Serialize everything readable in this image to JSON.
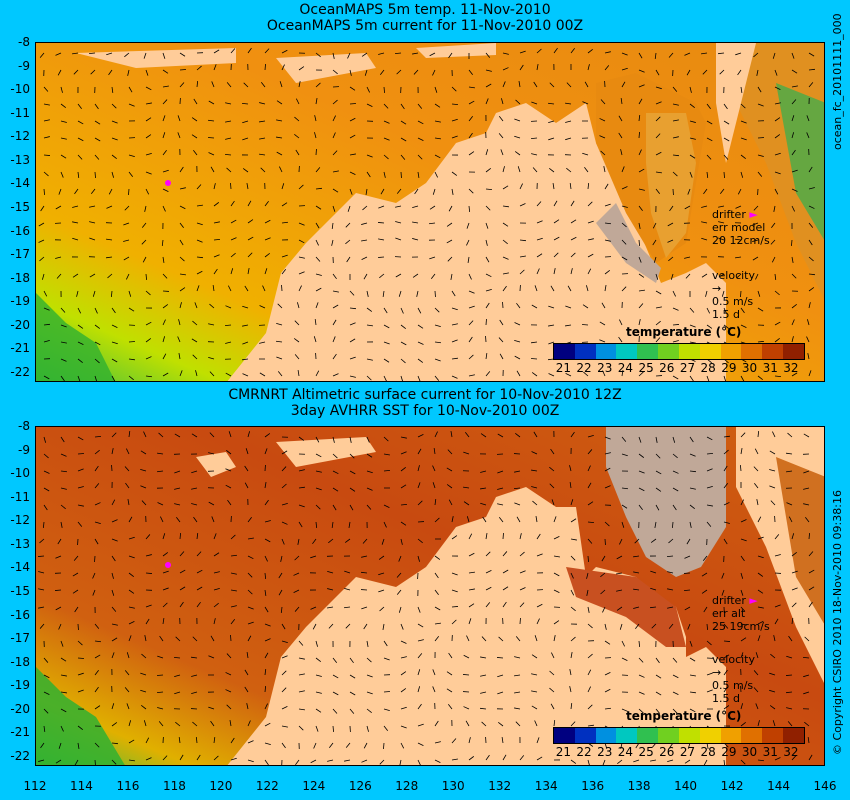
{
  "panel1": {
    "title1": "OceanMAPS 5m temp. 11-Nov-2010",
    "title2": "OceanMAPS 5m current for 11-Nov-2010 00Z",
    "legend": {
      "drifter": "drifter",
      "err": "err model",
      "err_value": "20 12cm/s",
      "velocity": "velocity",
      "vel_scale": "0.5 m/s",
      "vel_days": "1.5 d"
    },
    "colorbar_title": "temperature (°C)",
    "side_label": "ocean_fc_20101111_000"
  },
  "panel2": {
    "title1": "CMRNRT Altimetric surface current for 10-Nov-2010 12Z",
    "title2": "3day AVHRR SST for 10-Nov-2010 00Z",
    "legend": {
      "drifter": "drifter",
      "err": "err alt",
      "err_value": "25 19cm/s",
      "velocity": "velocity",
      "vel_scale": "0.5 m/s",
      "vel_days": "1.5 d"
    },
    "colorbar_title": "temperature (°C)",
    "side_label": "© Copyright CSIRO 2010   18-Nov-2010 09:38:16"
  },
  "colorbar_ticks": [
    "21",
    "22",
    "23",
    "24",
    "25",
    "26",
    "27",
    "28",
    "29",
    "30",
    "31",
    "32"
  ],
  "colorbar_colors": [
    "#000080",
    "#0030c0",
    "#0090e0",
    "#00c8c0",
    "#30c050",
    "#70d020",
    "#c0e000",
    "#f0d000",
    "#f0a000",
    "#e07000",
    "#c04000",
    "#902000"
  ],
  "y_ticks": [
    "-8",
    "-9",
    "-10",
    "-11",
    "-12",
    "-13",
    "-14",
    "-15",
    "-16",
    "-17",
    "-18",
    "-19",
    "-20",
    "-21",
    "-22"
  ],
  "x_ticks": [
    "112",
    "114",
    "116",
    "118",
    "120",
    "122",
    "124",
    "126",
    "128",
    "130",
    "132",
    "134",
    "136",
    "138",
    "140",
    "142",
    "144",
    "146"
  ],
  "colors": {
    "background": "#00c8ff",
    "land": "#ffcc99",
    "ocean_warm": "#e88a10",
    "ocean_hot": "#c84a10",
    "no_data": "#c0a898",
    "drifter": "#ff00ff"
  }
}
